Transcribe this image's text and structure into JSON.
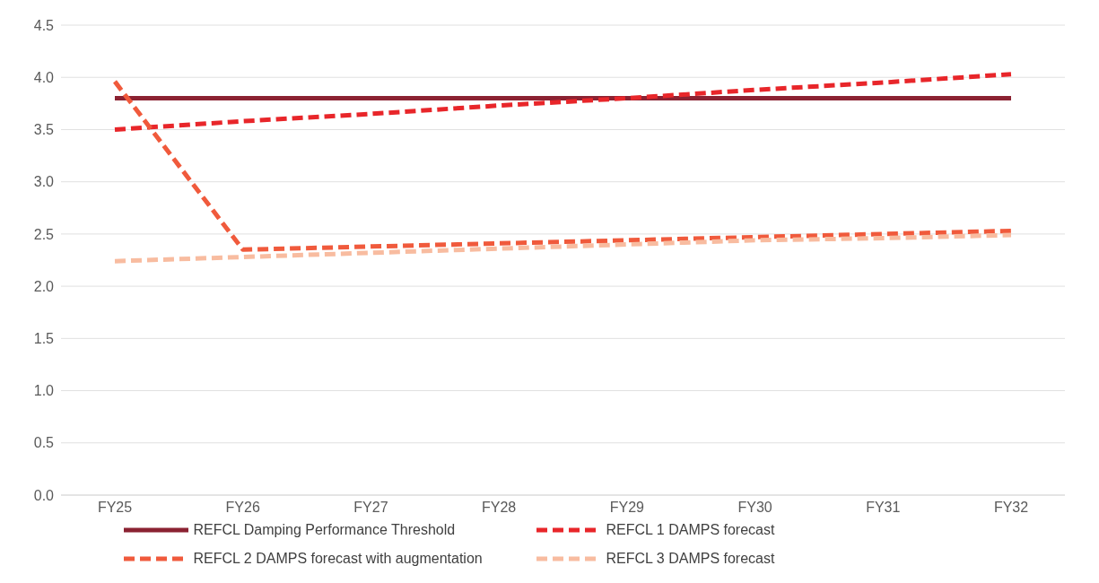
{
  "chart_data": {
    "type": "line",
    "categories": [
      "FY25",
      "FY26",
      "FY27",
      "FY28",
      "FY29",
      "FY30",
      "FY31",
      "FY32"
    ],
    "series": [
      {
        "name": "REFCL Damping Performance Threshold",
        "color": "#8b2232",
        "line_style": "solid",
        "values": [
          3.8,
          3.8,
          3.8,
          3.8,
          3.8,
          3.8,
          3.8,
          3.8
        ]
      },
      {
        "name": "REFCL 1 DAMPS forecast",
        "color": "#e8262a",
        "line_style": "dashed",
        "values": [
          3.5,
          3.58,
          3.65,
          3.73,
          3.8,
          3.88,
          3.95,
          4.03
        ]
      },
      {
        "name": "REFCL 2 DAMPS forecast with augmentation",
        "color": "#f05a3c",
        "line_style": "dashed",
        "values": [
          3.96,
          2.35,
          2.38,
          2.41,
          2.44,
          2.47,
          2.5,
          2.53
        ]
      },
      {
        "name": "REFCL 3 DAMPS forecast",
        "color": "#f8bca0",
        "line_style": "dashed",
        "values": [
          2.24,
          2.28,
          2.32,
          2.36,
          2.4,
          2.44,
          2.46,
          2.49
        ]
      }
    ],
    "ylim": [
      0,
      4.5
    ],
    "yticks": [
      {
        "value": 0,
        "label": "0.0"
      },
      0.5,
      {
        "value": 1,
        "label": "1.0"
      },
      1.5,
      {
        "value": 2,
        "label": "2.0"
      },
      2.5,
      {
        "value": 3,
        "label": "3.0"
      },
      3.5,
      {
        "value": 4,
        "label": "4.0"
      },
      4.5
    ],
    "grid": "y",
    "legend": "bottom",
    "marker": "none"
  }
}
